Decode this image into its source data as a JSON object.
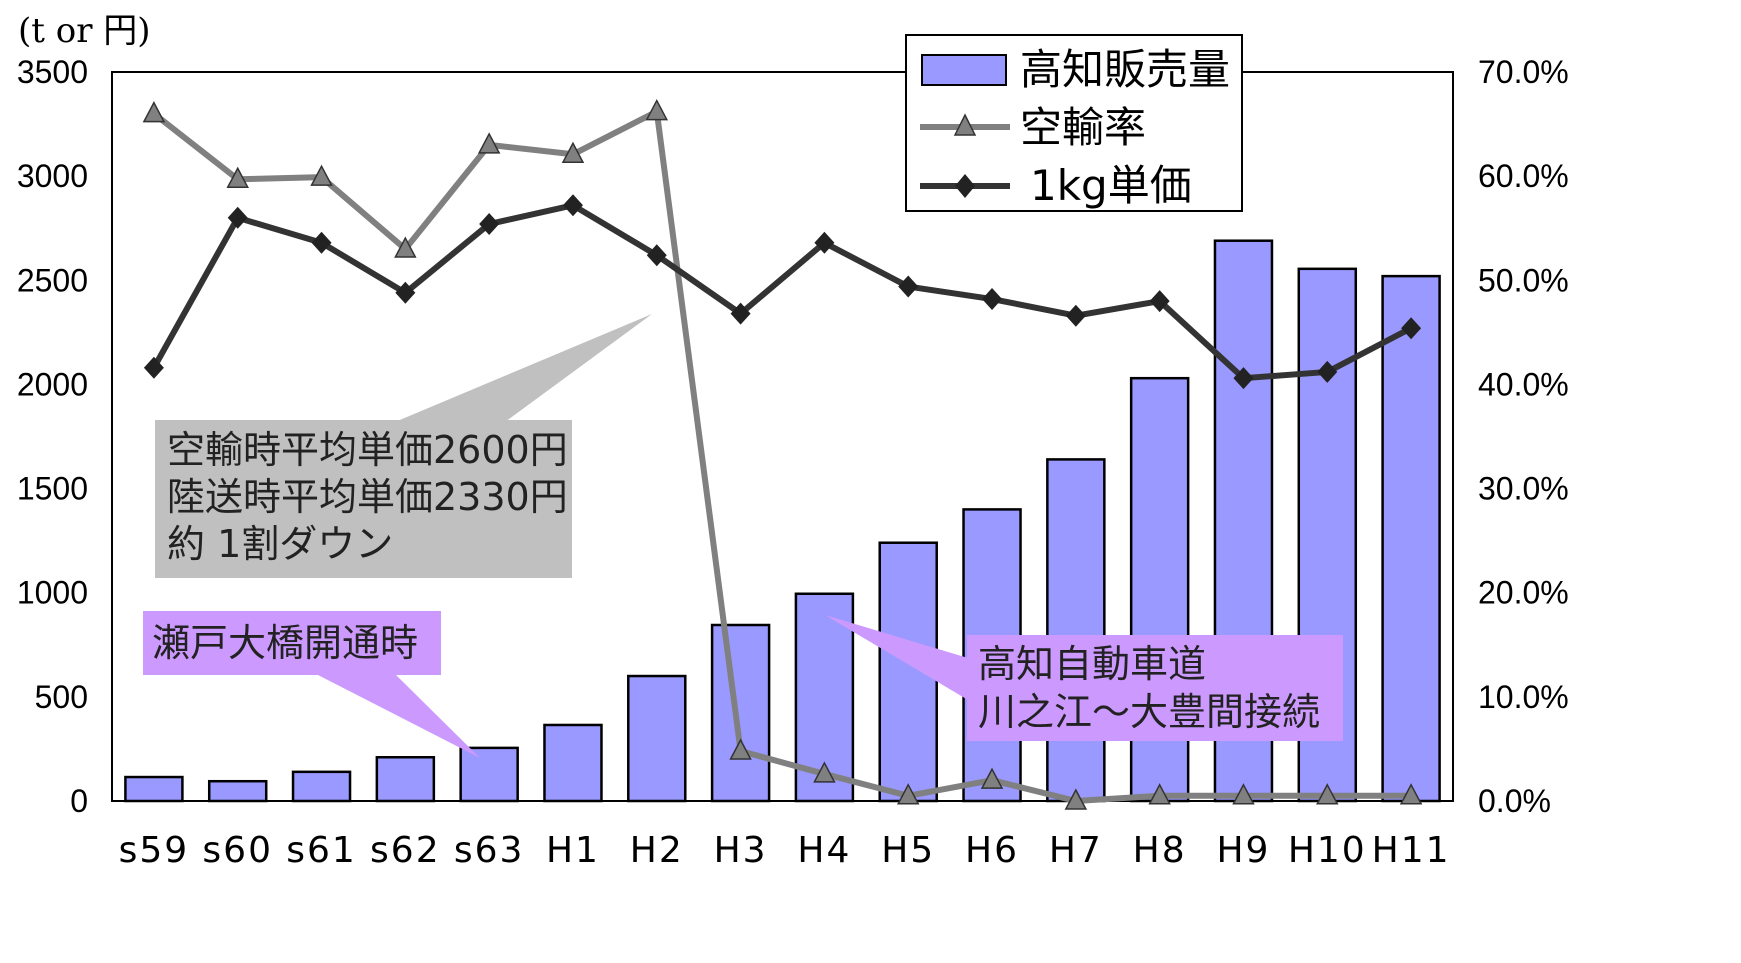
{
  "chart_data": {
    "type": "bar",
    "unit_label": "(t or  円)",
    "categories": [
      "s59",
      "s60",
      "s61",
      "s62",
      "s63",
      "H1",
      "H2",
      "H3",
      "H4",
      "H5",
      "H6",
      "H7",
      "H8",
      "H9",
      "H10",
      "H11"
    ],
    "left_axis": {
      "ylim": [
        0,
        3500
      ],
      "ticks": [
        "0",
        "500",
        "1000",
        "1500",
        "2000",
        "2500",
        "3000",
        "3500"
      ]
    },
    "right_axis": {
      "ylim": [
        0,
        70
      ],
      "ticks": [
        "0.0%",
        "10.0%",
        "20.0%",
        "30.0%",
        "40.0%",
        "50.0%",
        "60.0%",
        "70.0%"
      ]
    },
    "series": [
      {
        "name": "高知販売量",
        "type": "bar",
        "axis": "left",
        "color": "#9999ff",
        "values": [
          115,
          95,
          140,
          210,
          255,
          365,
          600,
          845,
          995,
          1240,
          1400,
          1640,
          2030,
          2690,
          2555,
          2520
        ]
      },
      {
        "name": "空輸率",
        "type": "line",
        "axis": "right",
        "color": "#808080",
        "marker": "triangle",
        "values": [
          66.0,
          59.7,
          59.9,
          53.0,
          63.0,
          62.1,
          66.2,
          4.8,
          2.6,
          0.5,
          2.0,
          0.0,
          0.5,
          0.5,
          0.5,
          0.5
        ]
      },
      {
        "name": "1kg単価",
        "type": "line",
        "axis": "left",
        "color": "#333333",
        "marker": "diamond",
        "values": [
          2080,
          2800,
          2680,
          2440,
          2770,
          2860,
          2620,
          2340,
          2680,
          2470,
          2410,
          2330,
          2400,
          2030,
          2060,
          2270
        ]
      }
    ],
    "legend_placement": "top-right",
    "annotations": [
      {
        "id": "air",
        "lines": [
          "空輸時平均単価2600円",
          "陸送時平均単価2330円",
          "約 1割ダウン"
        ],
        "color": "#c0c0c0"
      },
      {
        "id": "bridge",
        "lines": [
          "瀬戸大橋開通時"
        ],
        "color": "#cc99ff"
      },
      {
        "id": "expressway",
        "lines": [
          "高知自動車道",
          "川之江～大豊間接続"
        ],
        "color": "#cc99ff"
      }
    ]
  }
}
